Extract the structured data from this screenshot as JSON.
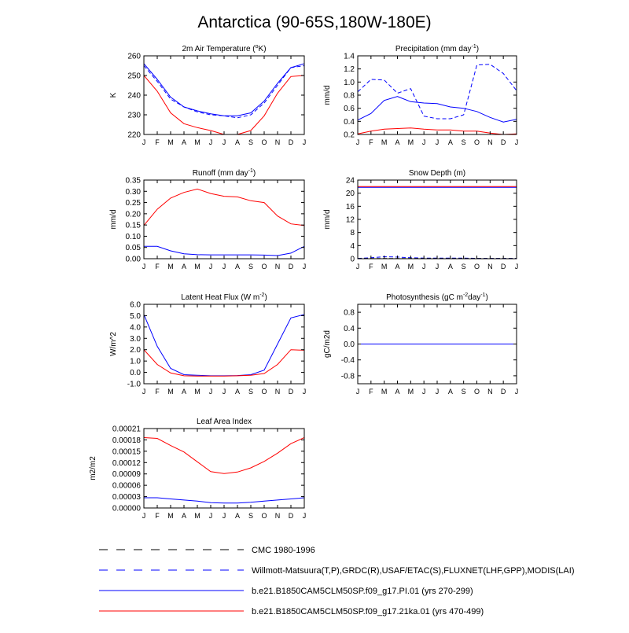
{
  "title": "Antarctica (90-65S,180W-180E)",
  "months": [
    "J",
    "F",
    "M",
    "A",
    "M",
    "J",
    "J",
    "A",
    "S",
    "O",
    "N",
    "D",
    "J"
  ],
  "colors": {
    "model_a": "#0000ff",
    "model_b": "#ff0000",
    "obs_dash": "#0000ff",
    "cmc_dash": "#000000"
  },
  "legend": [
    {
      "label": "CMC 1980-1996",
      "style": "dashed",
      "color": "#000000"
    },
    {
      "label": "Willmott-Matsuura(T,P),GRDC(R),USAF/ETAC(S),FLUXNET(LHF,GPP),MODIS(LAI)",
      "style": "dashed",
      "color": "#0000ff"
    },
    {
      "label": "b.e21.B1850CAM5CLM50SP.f09_g17.PI.01 (yrs 270-299)",
      "style": "solid",
      "color": "#0000ff"
    },
    {
      "label": "b.e21.B1850CAM5CLM50SP.f09_g17.21ka.01 (yrs 470-499)",
      "style": "solid",
      "color": "#ff0000"
    }
  ],
  "chart_data": [
    {
      "id": "temp",
      "type": "line",
      "title_main": "2m Air Temperature (",
      "title_sup": "o",
      "title_tail": "K)",
      "ylabel": "K",
      "ylim": [
        220,
        260
      ],
      "yticks": [
        220,
        230,
        240,
        250,
        260
      ],
      "ytick_labels": [
        "220",
        "230",
        "240",
        "250",
        "260"
      ],
      "series": [
        {
          "name": "b.e21.B1850CAM5CLM50SP.f09_g17.PI.01 (yrs 270-299)",
          "color": "#0000ff",
          "dash": false,
          "values": [
            256,
            248,
            239,
            234,
            232,
            230.5,
            229.5,
            229.5,
            231,
            237,
            246,
            254,
            256
          ]
        },
        {
          "name": "Willmott-Matsuura(T,P),GRDC(R),USAF/ETAC(S),FLUXNET(LHF,GPP),MODIS(LAI)",
          "color": "#0000ff",
          "dash": true,
          "values": [
            255,
            247,
            238,
            234,
            231.5,
            230,
            229.5,
            228.5,
            230,
            236,
            245,
            254,
            255
          ]
        },
        {
          "name": "b.e21.B1850CAM5CLM50SP.f09_g17.21ka.01 (yrs 470-499)",
          "color": "#ff0000",
          "dash": false,
          "values": [
            250,
            242,
            231,
            225.5,
            223.5,
            222,
            220,
            220,
            222,
            229.5,
            241,
            249.5,
            250
          ]
        }
      ]
    },
    {
      "id": "precip",
      "type": "line",
      "title_main": "Precipitation (mm day",
      "title_sup": "-1",
      "title_tail": ")",
      "ylabel": "mm/d",
      "ylim": [
        0.2,
        1.4
      ],
      "yticks": [
        0.2,
        0.4,
        0.6,
        0.8,
        1.0,
        1.2,
        1.4
      ],
      "ytick_labels": [
        "0.2",
        "0.4",
        "0.6",
        "0.8",
        "1.0",
        "1.2",
        "1.4"
      ],
      "series": [
        {
          "name": "b.e21.B1850CAM5CLM50SP.f09_g17.PI.01 (yrs 270-299)",
          "color": "#0000ff",
          "dash": false,
          "values": [
            0.42,
            0.52,
            0.72,
            0.78,
            0.7,
            0.68,
            0.67,
            0.62,
            0.6,
            0.55,
            0.46,
            0.39,
            0.43
          ]
        },
        {
          "name": "Willmott-Matsuura(T,P),GRDC(R),USAF/ETAC(S),FLUXNET(LHF,GPP),MODIS(LAI)",
          "color": "#0000ff",
          "dash": true,
          "values": [
            0.85,
            1.04,
            1.03,
            0.83,
            0.9,
            0.48,
            0.44,
            0.44,
            0.5,
            1.26,
            1.27,
            1.13,
            0.87
          ]
        },
        {
          "name": "b.e21.B1850CAM5CLM50SP.f09_g17.21ka.01 (yrs 470-499)",
          "color": "#ff0000",
          "dash": false,
          "values": [
            0.21,
            0.25,
            0.28,
            0.29,
            0.3,
            0.28,
            0.27,
            0.27,
            0.25,
            0.25,
            0.22,
            0.2,
            0.21
          ]
        }
      ]
    },
    {
      "id": "runoff",
      "type": "line",
      "title_main": "Runoff (mm day",
      "title_sup": "-1",
      "title_tail": ")",
      "ylabel": "mm/d",
      "ylim": [
        0,
        0.35
      ],
      "yticks": [
        0,
        0.05,
        0.1,
        0.15,
        0.2,
        0.25,
        0.3,
        0.35
      ],
      "ytick_labels": [
        "0.00",
        "0.05",
        "0.10",
        "0.15",
        "0.20",
        "0.25",
        "0.30",
        "0.35"
      ],
      "series": [
        {
          "name": "b.e21.B1850CAM5CLM50SP.f09_g17.PI.01 (yrs 270-299)",
          "color": "#0000ff",
          "dash": false,
          "values": [
            0.055,
            0.055,
            0.035,
            0.022,
            0.018,
            0.017,
            0.017,
            0.017,
            0.017,
            0.016,
            0.014,
            0.025,
            0.055
          ]
        },
        {
          "name": "b.e21.B1850CAM5CLM50SP.f09_g17.21ka.01 (yrs 470-499)",
          "color": "#ff0000",
          "dash": false,
          "values": [
            0.148,
            0.22,
            0.27,
            0.295,
            0.31,
            0.29,
            0.278,
            0.275,
            0.258,
            0.25,
            0.19,
            0.155,
            0.148
          ]
        }
      ]
    },
    {
      "id": "snow",
      "type": "line",
      "title_main": "Snow Depth (m)",
      "title_sup": "",
      "title_tail": "",
      "ylabel": "mm/d",
      "ylim": [
        0,
        24
      ],
      "yticks": [
        0,
        4,
        8,
        12,
        16,
        20,
        24
      ],
      "ytick_labels": [
        "0",
        "4",
        "8",
        "12",
        "16",
        "20",
        "24"
      ],
      "series": [
        {
          "name": "b.e21.B1850CAM5CLM50SP.f09_g17.PI.01 (yrs 270-299)",
          "color": "#0000ff",
          "dash": false,
          "values": [
            21.8,
            21.8,
            21.8,
            21.8,
            21.8,
            21.8,
            21.8,
            21.8,
            21.8,
            21.8,
            21.8,
            21.8,
            21.8
          ]
        },
        {
          "name": "b.e21.B1850CAM5CLM50SP.f09_g17.21ka.01 (yrs 470-499)",
          "color": "#ff0000",
          "dash": false,
          "values": [
            22.0,
            22.0,
            22.0,
            22.0,
            22.0,
            22.0,
            22.0,
            22.0,
            22.0,
            22.0,
            22.0,
            22.0,
            22.0
          ]
        },
        {
          "name": "Willmott-Matsuura(T,P),GRDC(R),USAF/ETAC(S),FLUXNET(LHF,GPP),MODIS(LAI)",
          "color": "#0000ff",
          "dash": true,
          "values": [
            0.1,
            0.3,
            0.6,
            0.5,
            0.3,
            0.2,
            0.2,
            0.2,
            0.2,
            0.1,
            0.1,
            0.1,
            0.1
          ]
        },
        {
          "name": "CMC 1980-1996",
          "color": "#000000",
          "dash": true,
          "values": [
            0.05,
            0.05,
            0.05,
            0.05,
            0.05,
            0.05,
            0.05,
            0.05,
            0.05,
            0.05,
            0.05,
            0.05,
            0.05
          ]
        }
      ]
    },
    {
      "id": "lhf",
      "type": "line",
      "title_main": "Latent Heat Flux (W m",
      "title_sup": "-2",
      "title_tail": ")",
      "ylabel": "W/m^2",
      "ylim": [
        -1,
        6
      ],
      "yticks": [
        -1,
        0,
        1,
        2,
        3,
        4,
        5,
        6
      ],
      "ytick_labels": [
        "-1.0",
        "0.0",
        "1.0",
        "2.0",
        "3.0",
        "4.0",
        "5.0",
        "6.0"
      ],
      "series": [
        {
          "name": "b.e21.B1850CAM5CLM50SP.f09_g17.PI.01 (yrs 270-299)",
          "color": "#0000ff",
          "dash": false,
          "values": [
            5.1,
            2.3,
            0.35,
            -0.2,
            -0.25,
            -0.3,
            -0.3,
            -0.28,
            -0.2,
            0.2,
            2.5,
            4.8,
            5.1
          ]
        },
        {
          "name": "b.e21.B1850CAM5CLM50SP.f09_g17.21ka.01 (yrs 470-499)",
          "color": "#ff0000",
          "dash": false,
          "values": [
            2.0,
            0.7,
            -0.05,
            -0.3,
            -0.33,
            -0.33,
            -0.33,
            -0.3,
            -0.25,
            -0.1,
            0.7,
            2.0,
            1.95
          ]
        }
      ]
    },
    {
      "id": "photo",
      "type": "line",
      "title_main": "Photosynthesis (gC m",
      "title_sup": "-2",
      "title_tail": "day",
      "title_sup2": "-1",
      "title_tail2": ")",
      "ylabel": "gC/m2d",
      "ylim": [
        -1,
        1
      ],
      "yticks": [
        -0.8,
        -0.4,
        0,
        0.4,
        0.8
      ],
      "ytick_labels": [
        "-0.8",
        "-0.4",
        "0.0",
        "0.4",
        "0.8"
      ],
      "series": [
        {
          "name": "b.e21.B1850CAM5CLM50SP.f09_g17.21ka.01 (yrs 470-499)",
          "color": "#ff0000",
          "dash": false,
          "values": [
            0,
            0,
            0,
            0,
            0,
            0,
            0,
            0,
            0,
            0,
            0,
            0,
            0
          ]
        },
        {
          "name": "b.e21.B1850CAM5CLM50SP.f09_g17.PI.01 (yrs 270-299)",
          "color": "#0000ff",
          "dash": false,
          "values": [
            0,
            0,
            0,
            0,
            0,
            0,
            0,
            0,
            0,
            0,
            0,
            0,
            0
          ]
        }
      ]
    },
    {
      "id": "lai",
      "type": "line",
      "title_main": "Leaf Area Index",
      "title_sup": "",
      "title_tail": "",
      "ylabel": "m2/m2",
      "ylim": [
        0,
        0.00021
      ],
      "yticks": [
        0,
        3e-05,
        6e-05,
        9e-05,
        0.00012,
        0.00015,
        0.00018,
        0.00021
      ],
      "ytick_labels": [
        "0.00000",
        "0.00003",
        "0.00006",
        "0.00009",
        "0.00012",
        "0.00015",
        "0.00018",
        "0.00021"
      ],
      "series": [
        {
          "name": "b.e21.B1850CAM5CLM50SP.f09_g17.PI.01 (yrs 270-299)",
          "color": "#0000ff",
          "dash": false,
          "values": [
            2.7e-05,
            2.7e-05,
            2.4e-05,
            2.1e-05,
            1.8e-05,
            1.4e-05,
            1.3e-05,
            1.3e-05,
            1.5e-05,
            1.8e-05,
            2.1e-05,
            2.4e-05,
            2.7e-05
          ]
        },
        {
          "name": "b.e21.B1850CAM5CLM50SP.f09_g17.21ka.01 (yrs 470-499)",
          "color": "#ff0000",
          "dash": false,
          "values": [
            0.000186,
            0.000184,
            0.000165,
            0.000148,
            0.000122,
            9.6e-05,
            9.1e-05,
            9.5e-05,
            0.000106,
            0.000123,
            0.000145,
            0.00017,
            0.000186
          ]
        }
      ]
    }
  ]
}
